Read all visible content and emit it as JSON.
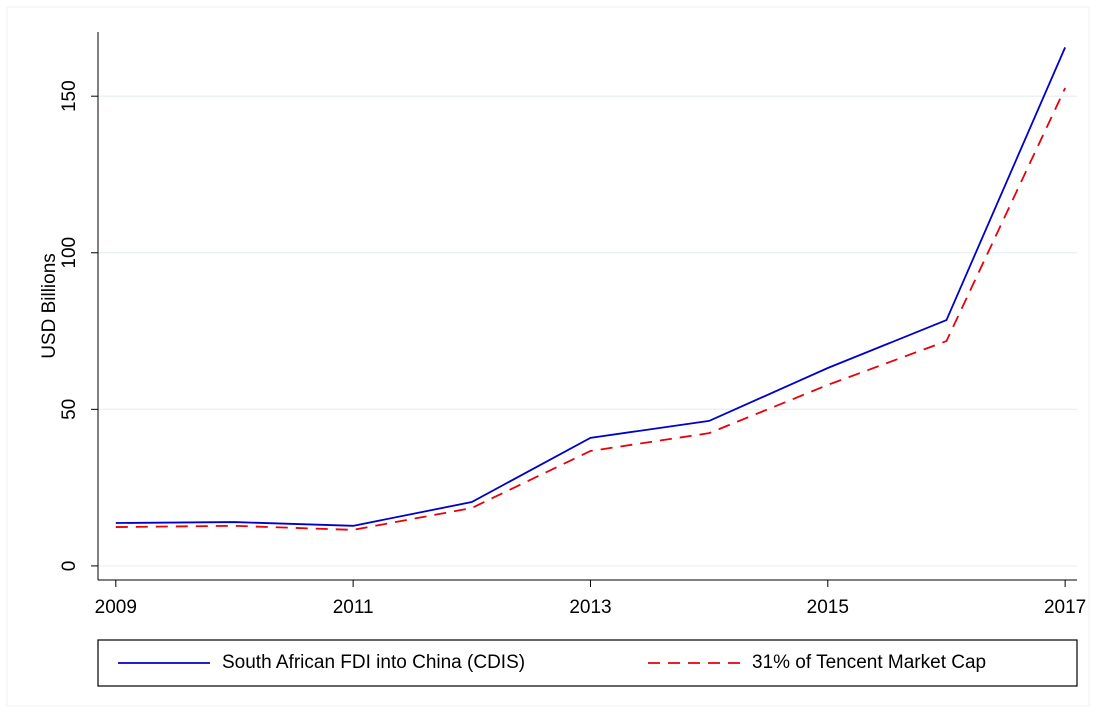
{
  "chart_data": {
    "type": "line",
    "y_label": "USD Billions",
    "x": [
      2009,
      2010,
      2011,
      2012,
      2013,
      2014,
      2015,
      2016,
      2017
    ],
    "series": [
      {
        "name": "South African FDI into China (CDIS)",
        "color": "#0000cc",
        "dash": "solid",
        "values": [
          13.7,
          14.0,
          12.8,
          20.4,
          40.9,
          46.3,
          63.2,
          78.5,
          165.6
        ]
      },
      {
        "name": "31% of Tencent Market Cap",
        "color": "#e8000b",
        "dash": "dashed",
        "values": [
          12.4,
          12.8,
          11.5,
          18.5,
          36.7,
          42.4,
          57.8,
          71.8,
          152.6
        ]
      }
    ],
    "xlim": [
      2008.85,
      2017.1
    ],
    "xticks": [
      2009,
      2011,
      2013,
      2015,
      2017
    ],
    "ylim": [
      -4.5,
      170.5
    ],
    "yticks": [
      0,
      50,
      100,
      150
    ],
    "grid": true,
    "legend": "bottom"
  }
}
